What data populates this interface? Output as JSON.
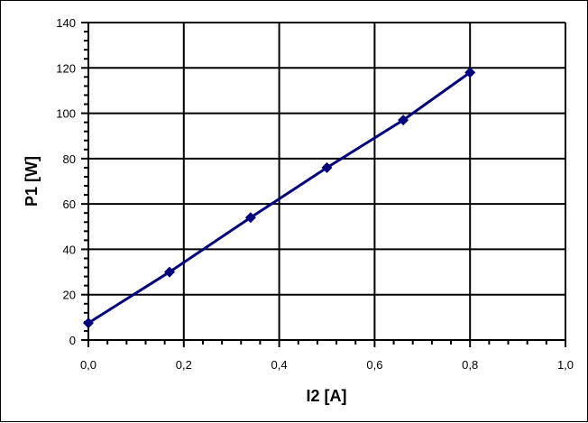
{
  "chart_data": {
    "type": "line",
    "title": "",
    "xlabel": "I2 [A]",
    "ylabel": "P1 [W]",
    "xlim": [
      0,
      1.0
    ],
    "ylim": [
      0,
      140
    ],
    "x_major": 0.2,
    "y_major": 20,
    "x_minor": 0.04,
    "y_minor": 4,
    "grid": true,
    "x_tick_labels": [
      "0,0",
      "0,2",
      "0,4",
      "0,6",
      "0,8",
      "1,0"
    ],
    "y_tick_labels": [
      "0",
      "20",
      "40",
      "60",
      "80",
      "100",
      "120",
      "140"
    ],
    "series": [
      {
        "x": [
          0.0,
          0.17,
          0.34,
          0.5,
          0.66,
          0.8
        ],
        "y": [
          7.5,
          30,
          54,
          76,
          97,
          118
        ],
        "color": "#000080",
        "marker": "diamond"
      }
    ]
  }
}
